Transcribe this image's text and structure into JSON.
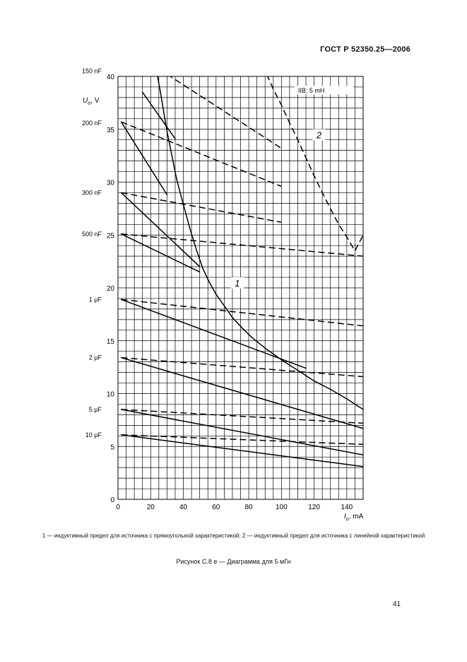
{
  "document": {
    "header": "ГОСТ Р 52350.25—2006",
    "caption": "1 — индуктивный предел для источника с прямоугольной характеристикой; 2 — индуктивный предел для источника с линейной характеристикой",
    "figure_title": "Рисунок С.8 е — Диаграмма для 5 мГн",
    "page_number": "41"
  },
  "chart_data": {
    "type": "line",
    "xlabel": "I",
    "xlabel_sub": "o",
    "xlabel_unit": ", mA",
    "ylabel": "U",
    "ylabel_sub": "o",
    "ylabel_unit": ", V",
    "xlim": [
      0,
      150
    ],
    "ylim": [
      0,
      40
    ],
    "x_ticks": [
      0,
      20,
      40,
      60,
      80,
      100,
      120,
      140
    ],
    "y_ticks": [
      0,
      5,
      10,
      15,
      20,
      25,
      30,
      35,
      40
    ],
    "grid": true,
    "legend_box": "IIB; 5 mH",
    "capacitance_labels": [
      {
        "label": "150 nF",
        "u": 40.5
      },
      {
        "label": "200 nF",
        "u": 35.6
      },
      {
        "label": "300 nF",
        "u": 29.0
      },
      {
        "label": "500 nF",
        "u": 25.1
      },
      {
        "label": "1 µF",
        "u": 18.9
      },
      {
        "label": "2 µF",
        "u": 13.4
      },
      {
        "label": "5 µF",
        "u": 8.5
      },
      {
        "label": "10 µF",
        "u": 6.1
      }
    ],
    "curve_labels": [
      {
        "text": "1",
        "x": 73,
        "y": 20.4
      },
      {
        "text": "2",
        "x": 123,
        "y": 34.4
      }
    ],
    "series": [
      {
        "name": "1",
        "style": "solid",
        "x": [
          24,
          26,
          28,
          30,
          33,
          36,
          40,
          44,
          48,
          52,
          56,
          60,
          65,
          70,
          76,
          82,
          90,
          100,
          110,
          120,
          130,
          140,
          150
        ],
        "y": [
          40.2,
          38.5,
          36.6,
          34.8,
          32.5,
          30.2,
          27.9,
          25.6,
          23.6,
          21.8,
          20.5,
          19.4,
          18.3,
          17.2,
          16.2,
          15.3,
          14.3,
          13.2,
          12.2,
          11.2,
          10.4,
          9.5,
          8.5
        ]
      },
      {
        "name": "2",
        "style": "dashed",
        "x": [
          91,
          95,
          100,
          105,
          110,
          115,
          120,
          125,
          130,
          135,
          140,
          145,
          150
        ],
        "y": [
          40.2,
          38.8,
          37.3,
          35.6,
          34.0,
          32.3,
          30.6,
          29.0,
          27.5,
          26.0,
          24.8,
          23.5,
          25.0
        ]
      },
      {
        "name": "",
        "style": "solid",
        "x": [
          15,
          20,
          25,
          30,
          35
        ],
        "y": [
          38.5,
          37.4,
          36.3,
          35.2,
          34.1
        ]
      },
      {
        "name": "",
        "style": "solid",
        "x": [
          2,
          30
        ],
        "y": [
          35.7,
          28.8
        ]
      },
      {
        "name": "",
        "style": "solid",
        "x": [
          2,
          50
        ],
        "y": [
          29.0,
          22.0
        ]
      },
      {
        "name": "",
        "style": "solid",
        "x": [
          2,
          50
        ],
        "y": [
          25.1,
          21.5
        ]
      },
      {
        "name": "",
        "style": "solid",
        "x": [
          2,
          115
        ],
        "y": [
          18.9,
          12.4
        ]
      },
      {
        "name": "",
        "style": "solid",
        "x": [
          2,
          150
        ],
        "y": [
          13.4,
          6.7
        ]
      },
      {
        "name": "",
        "style": "solid",
        "x": [
          2,
          150
        ],
        "y": [
          8.5,
          4.2
        ]
      },
      {
        "name": "",
        "style": "solid",
        "x": [
          2,
          150
        ],
        "y": [
          6.1,
          3.1
        ]
      },
      {
        "name": "",
        "style": "dashed",
        "x": [
          30,
          100
        ],
        "y": [
          40.2,
          33.2
        ]
      },
      {
        "name": "",
        "style": "dashed",
        "x": [
          2,
          100
        ],
        "y": [
          35.7,
          29.6
        ]
      },
      {
        "name": "",
        "style": "dashed",
        "x": [
          2,
          100
        ],
        "y": [
          29.0,
          26.2
        ]
      },
      {
        "name": "",
        "style": "dashed",
        "x": [
          2,
          150
        ],
        "y": [
          25.1,
          23.0
        ]
      },
      {
        "name": "",
        "style": "dashed",
        "x": [
          2,
          150
        ],
        "y": [
          18.9,
          16.4
        ]
      },
      {
        "name": "",
        "style": "dashed",
        "x": [
          2,
          150
        ],
        "y": [
          13.4,
          11.6
        ]
      },
      {
        "name": "",
        "style": "dashed",
        "x": [
          2,
          150
        ],
        "y": [
          8.5,
          7.2
        ]
      },
      {
        "name": "",
        "style": "dashed",
        "x": [
          2,
          150
        ],
        "y": [
          6.1,
          5.2
        ]
      }
    ]
  }
}
